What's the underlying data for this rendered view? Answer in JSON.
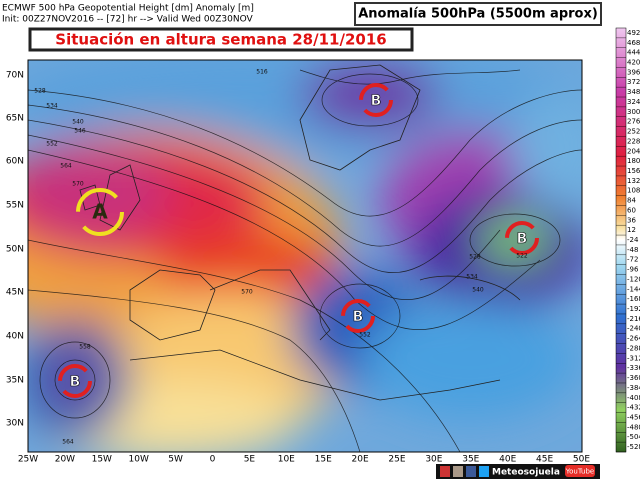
{
  "header": {
    "line1": "ECMWF 500 hPa Geopotential Height [dm] Anomaly [m]",
    "line2": "Init: 00Z27NOV2016 -- [72] hr --> Valid Wed 00Z30NOV",
    "panel_title": "Anomalía 500hPa (5500m aprox)"
  },
  "title": "Situación en altura semana 28/11/2016",
  "map": {
    "lat_labels": [
      "70N",
      "65N",
      "60N",
      "55N",
      "50N",
      "45N",
      "40N",
      "35N",
      "30N"
    ],
    "lon_labels": [
      "25W",
      "20W",
      "15W",
      "10W",
      "5W",
      "0",
      "5E",
      "10E",
      "15E",
      "20E",
      "25E",
      "30E",
      "35E",
      "40E",
      "45E",
      "50E"
    ],
    "centers": [
      "A",
      "B",
      "B",
      "B",
      "B"
    ],
    "contour_labels": [
      "516",
      "528",
      "534",
      "540",
      "546",
      "552",
      "564",
      "570",
      "522",
      "528",
      "534",
      "540",
      "570",
      "558",
      "552",
      "564"
    ]
  },
  "colorbar": {
    "labels": [
      "492",
      "468",
      "444",
      "420",
      "396",
      "372",
      "348",
      "324",
      "300",
      "276",
      "252",
      "228",
      "204",
      "180",
      "156",
      "132",
      "108",
      "84",
      "60",
      "36",
      "12",
      "-24",
      "-48",
      "-72",
      "-96",
      "-120",
      "-144",
      "-168",
      "-192",
      "-216",
      "-240",
      "-264",
      "-288",
      "-312",
      "-336",
      "-360",
      "-384",
      "-408",
      "-432",
      "-456",
      "-480",
      "-504",
      "-528"
    ]
  },
  "footer": {
    "brand": "Meteosojuela",
    "video": "YouTube"
  }
}
